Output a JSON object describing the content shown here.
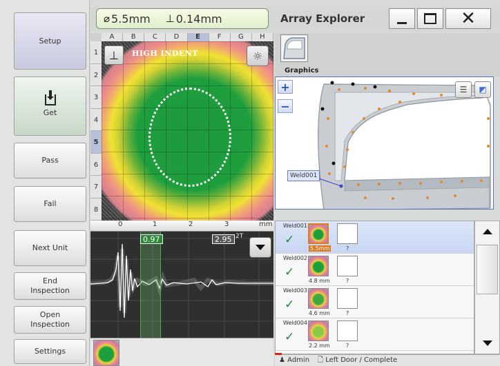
{
  "sidebar": {
    "setup": "Setup",
    "get": "Get",
    "pass": "Pass",
    "fail": "Fail",
    "next_unit": "Next Unit",
    "end_inspection": [
      "End",
      "Inspection"
    ],
    "open_inspection": [
      "Open",
      "Inspection"
    ],
    "settings": "Settings"
  },
  "header": {
    "diameter": "5.5mm",
    "indent_depth": "0.14mm",
    "title": "Array Explorer"
  },
  "cscan": {
    "columns": [
      "A",
      "B",
      "C",
      "D",
      "E",
      "F",
      "G",
      "H"
    ],
    "rows": [
      "1",
      "2",
      "3",
      "4",
      "5",
      "6",
      "7",
      "8"
    ],
    "selected_column": "E",
    "selected_row": "5",
    "label": "HIGH INDENT"
  },
  "ascan": {
    "ruler_ticks": [
      "0",
      "1",
      "2",
      "3"
    ],
    "ruler_unit": "mm",
    "gate_value_1": "0.97",
    "gate_value_2": "2.95",
    "gate_suffix": "2T"
  },
  "graphics": {
    "tab_label": "Graphics",
    "weld_callout": "Weld001"
  },
  "welds": [
    {
      "name": "Weld001",
      "size": "5.5mm",
      "result": "?",
      "selected": true,
      "thumb": "#1f9e3e"
    },
    {
      "name": "Weld002",
      "size": "4.8 mm",
      "result": "?",
      "selected": false,
      "thumb": "#1f9e3e"
    },
    {
      "name": "Weld003",
      "size": "4.6 mm",
      "result": "?",
      "selected": false,
      "thumb": "#3fa842"
    },
    {
      "name": "Weld004",
      "size": "2.2 mm",
      "result": "?",
      "selected": false,
      "thumb": "#8bc84a"
    }
  ],
  "status": {
    "user": "Admin",
    "document": "Left Door / Complete"
  }
}
